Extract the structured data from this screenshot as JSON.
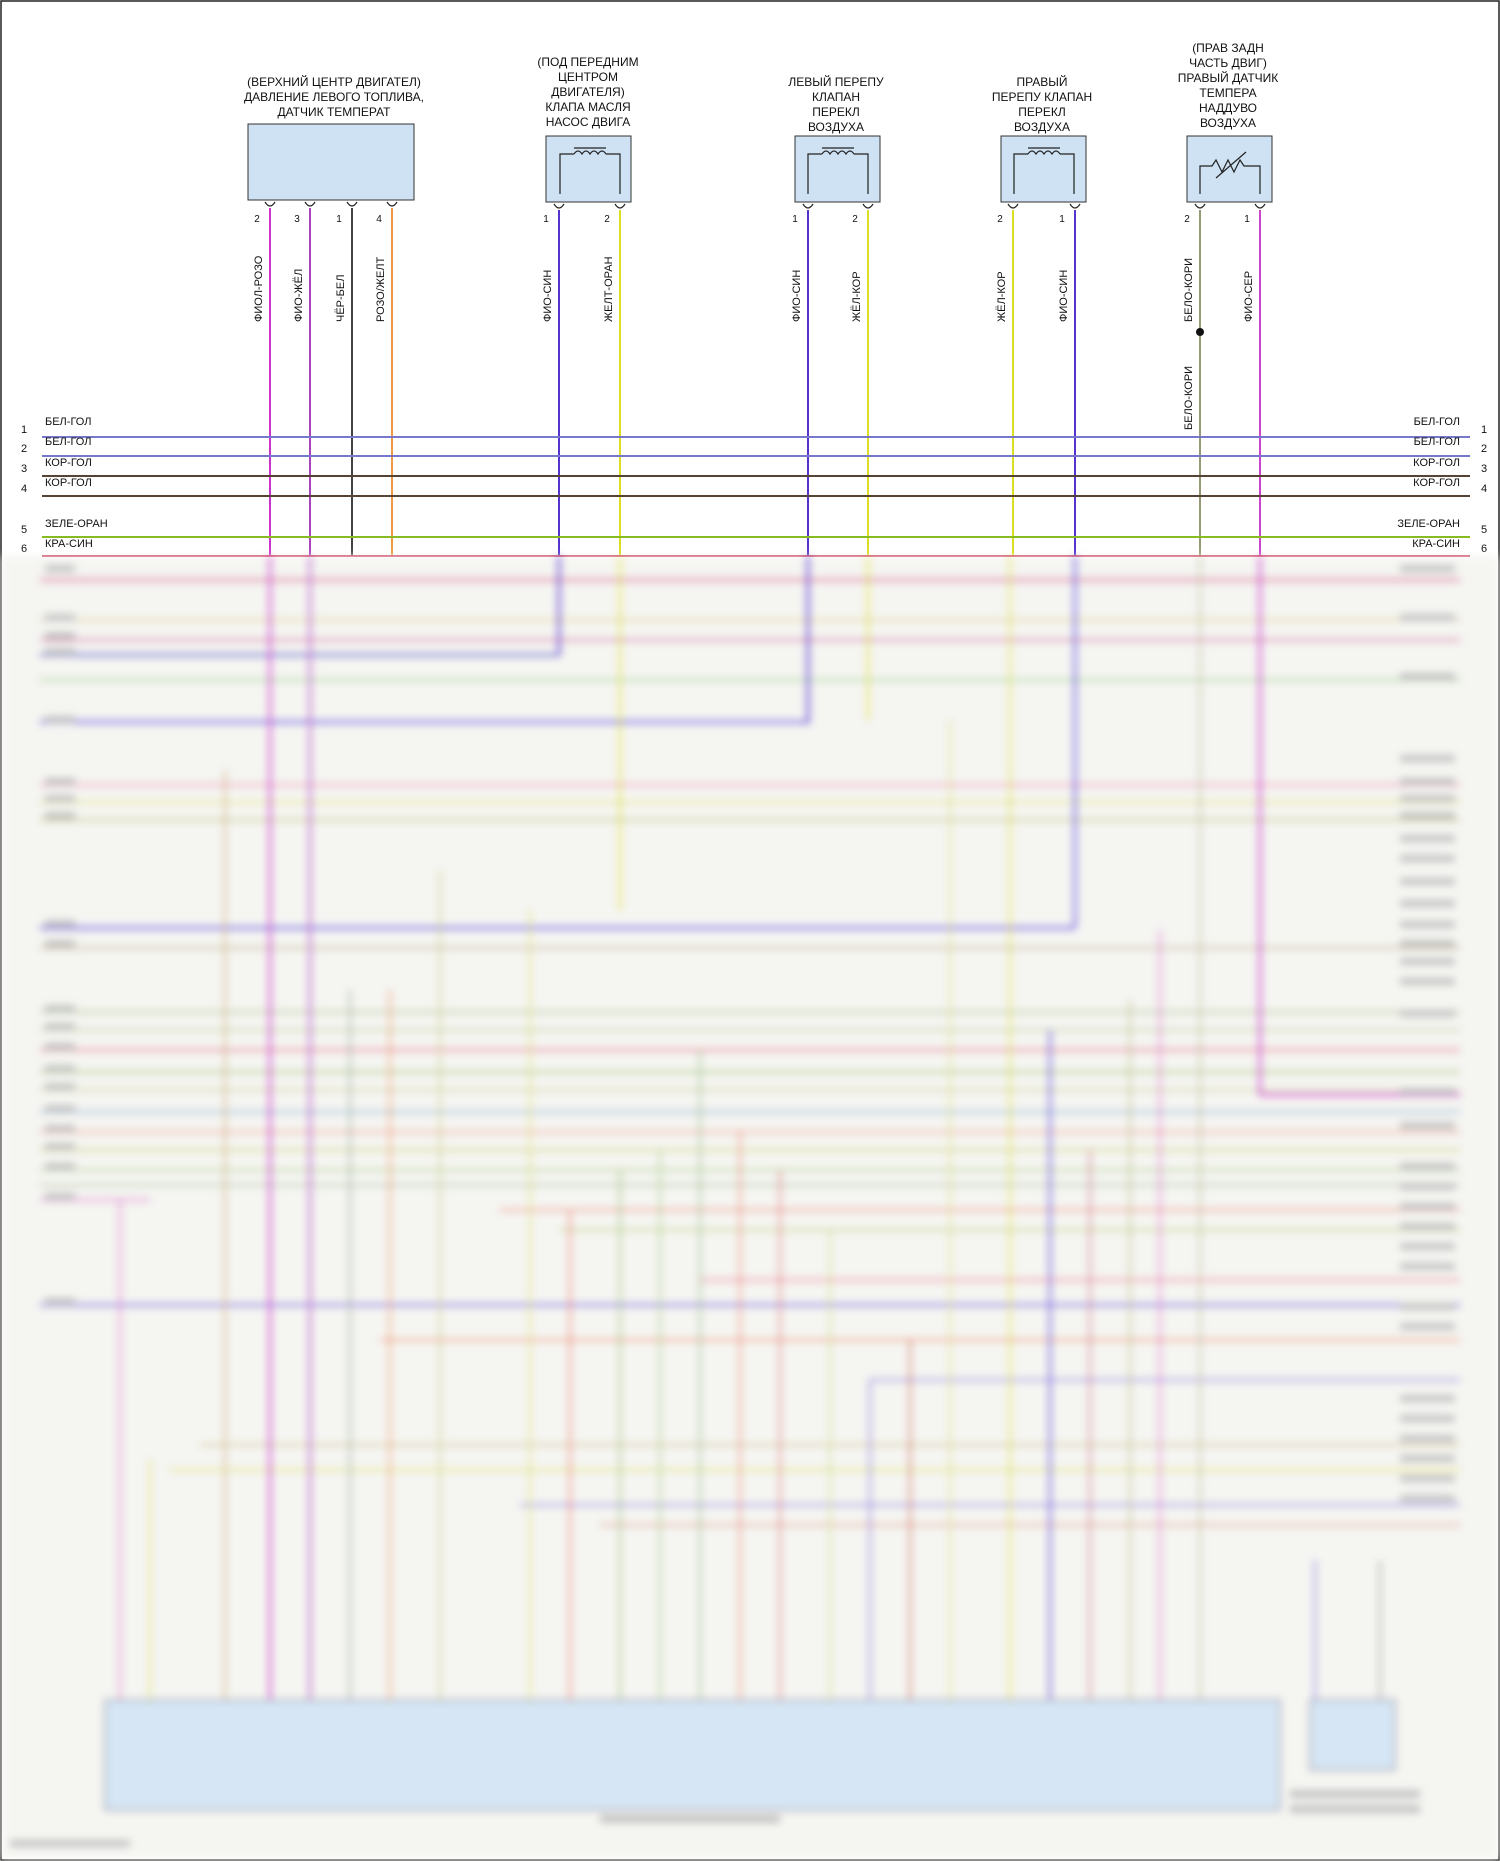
{
  "components": [
    {
      "id": "fuel-sensor",
      "label": [
        "(ВЕРХНИЙ ЦЕНТР ДВИГАТЕЛ)",
        "ДАВЛЕНИЕ ЛЕВОГО ТОПЛИВА,",
        "ДАТЧИК ТЕМПЕРАТ"
      ],
      "pins": [
        {
          "num": "2",
          "wire": "ФИОЛ-РОЗО",
          "color": "#cc33cc"
        },
        {
          "num": "3",
          "wire": "ФИО-ЖЁЛ",
          "color": "#aa44bb"
        },
        {
          "num": "1",
          "wire": "ЧЁР-БЕЛ",
          "color": "#444444"
        },
        {
          "num": "4",
          "wire": "РОЗО/ЖЕЛТ",
          "color": "#ee9944"
        }
      ]
    },
    {
      "id": "oil-pump-valve",
      "label": [
        "(ПОД ПЕРЕДНИМ",
        "ЦЕНТРОМ",
        "ДВИГАТЕЛЯ)",
        "КЛАПА МАСЛЯ",
        "НАСОС ДВИГА"
      ],
      "pins": [
        {
          "num": "1",
          "wire": "ФИО-СИН",
          "color": "#5533cc"
        },
        {
          "num": "2",
          "wire": "ЖЕЛТ-ОРАН",
          "color": "#dddd22"
        }
      ]
    },
    {
      "id": "left-air-valve",
      "label": [
        "ЛЕВЫЙ ПЕРЕПУ",
        "КЛАПАН",
        "ПЕРЕКЛ",
        "ВОЗДУХА"
      ],
      "pins": [
        {
          "num": "1",
          "wire": "ФИО-СИН",
          "color": "#5533cc"
        },
        {
          "num": "2",
          "wire": "ЖЁЛ-КОР",
          "color": "#dddd22"
        }
      ]
    },
    {
      "id": "right-air-valve",
      "label": [
        "ПРАВЫЙ",
        "ПЕРЕПУ КЛАПАН",
        "ПЕРЕКЛ",
        "ВОЗДУХА"
      ],
      "pins": [
        {
          "num": "2",
          "wire": "ЖЁЛ-КОР",
          "color": "#dddd22"
        },
        {
          "num": "1",
          "wire": "ФИО-СИН",
          "color": "#5533cc"
        }
      ]
    },
    {
      "id": "boost-temp-sensor",
      "label": [
        "(ПРАВ ЗАДН",
        "ЧАСТЬ ДВИГ)",
        "ПРАВЫЙ ДАТЧИК",
        "ТЕМПЕРА",
        "НАДДУВО",
        "ВОЗДУХА"
      ],
      "pins": [
        {
          "num": "2",
          "wire": "БЕЛО-КОРИ",
          "color": "#999977"
        },
        {
          "num": "1",
          "wire": "ФИО-СЕР",
          "color": "#cc44cc"
        }
      ]
    }
  ],
  "splice_wire": "БЕЛО-КОРИ",
  "bus": {
    "left": [
      {
        "num": "1",
        "label": "БЕЛ-ГОЛ",
        "color": "#7777cc"
      },
      {
        "num": "2",
        "label": "БЕЛ-ГОЛ",
        "color": "#7777cc"
      },
      {
        "num": "3",
        "label": "КОР-ГОЛ",
        "color": "#554433"
      },
      {
        "num": "4",
        "label": "КОР-ГОЛ",
        "color": "#554433"
      },
      {
        "num": "5",
        "label": "ЗЕЛЕ-ОРАН",
        "color": "#88bb22"
      },
      {
        "num": "6",
        "label": "КРА-СИН",
        "color": "#cc3355"
      }
    ],
    "right": [
      {
        "num": "1",
        "label": "БЕЛ-ГОЛ"
      },
      {
        "num": "2",
        "label": "БЕЛ-ГОЛ"
      },
      {
        "num": "3",
        "label": "КОР-ГОЛ"
      },
      {
        "num": "4",
        "label": "КОР-ГОЛ"
      },
      {
        "num": "5",
        "label": "ЗЕЛЕ-ОРАН"
      },
      {
        "num": "6",
        "label": "КРА-СИН"
      }
    ]
  },
  "colors": {
    "box_fill": "#cfe2f3",
    "ecm_fill": "#cfe2f3"
  }
}
